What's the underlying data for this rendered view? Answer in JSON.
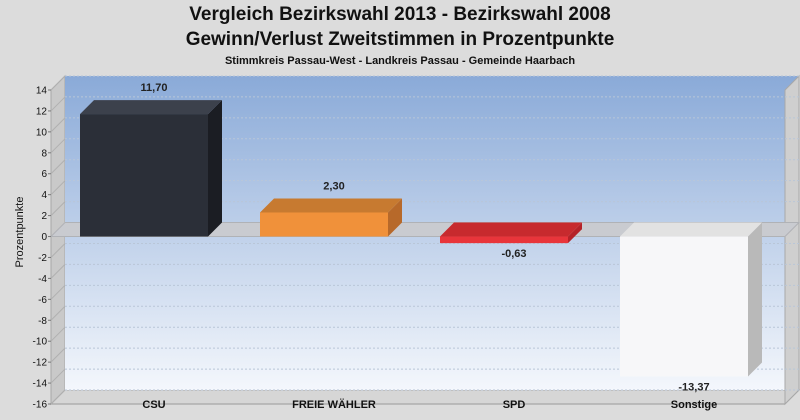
{
  "chart_data": {
    "type": "bar",
    "title": "Vergleich Bezirkswahl 2013 - Bezirkswahl 2008",
    "subtitle": "Gewinn/Verlust Zweitstimmen in Prozentpunkte",
    "subsubtitle": "Stimmkreis Passau-West - Landkreis Passau - Gemeinde Haarbach",
    "ylabel": "Prozentpunkte",
    "xlabel": "",
    "ylim": [
      -16,
      14
    ],
    "yticks": [
      14,
      12,
      10,
      8,
      6,
      4,
      2,
      0,
      -2,
      -4,
      -6,
      -8,
      -10,
      -12,
      -14,
      -16
    ],
    "categories": [
      "CSU",
      "FREIE WÄHLER",
      "SPD",
      "Sonstige"
    ],
    "values": [
      11.7,
      2.3,
      -0.63,
      -13.37
    ],
    "value_labels": [
      "11,70",
      "2,30",
      "-0,63",
      "-13,37"
    ],
    "colors": [
      "#2b2f38",
      "#f0913a",
      "#e8353b",
      "#f7f7f9"
    ],
    "side_colors": [
      "#1b1d23",
      "#b7692a",
      "#b52228",
      "#b9b9b9"
    ],
    "top_colors": [
      "#3c414c",
      "#c77a30",
      "#c72a2e",
      "#e2e2e2"
    ],
    "grid": true,
    "legend": "none"
  }
}
